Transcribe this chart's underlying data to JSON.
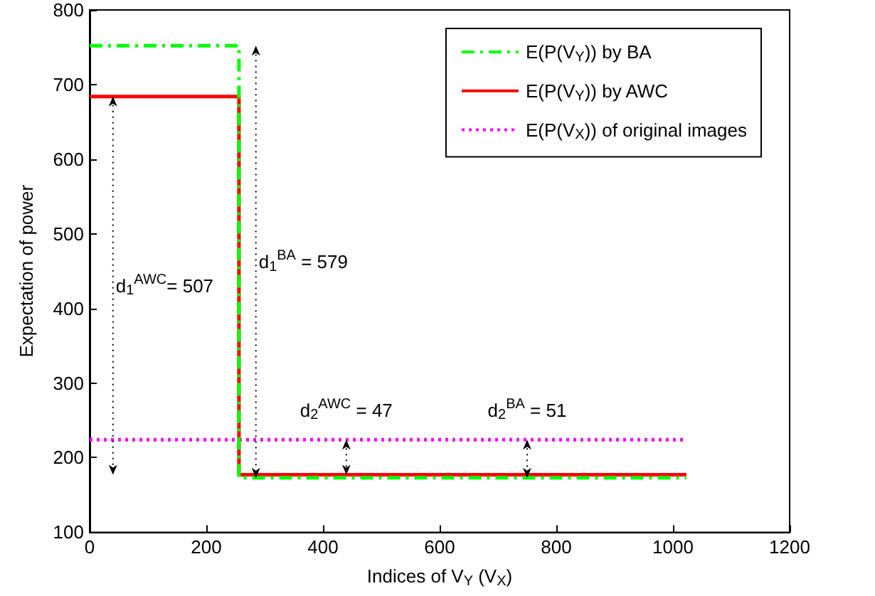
{
  "chart_data": {
    "type": "step",
    "xlabel": "Indices of V$_{Y}$ (V$_{X}$)",
    "ylabel": "Expectation of power",
    "xlim": [
      0,
      1200
    ],
    "xticks": [
      0,
      200,
      400,
      600,
      800,
      1000,
      1200
    ],
    "ylim": [
      100,
      800
    ],
    "yticks": [
      100,
      200,
      300,
      400,
      500,
      600,
      700,
      800
    ],
    "series": [
      {
        "name": "E(P(V$_{Y}$)) by BA",
        "color": "#00ff00",
        "line_style": "dashed",
        "x": [
          0,
          256,
          1023
        ],
        "values": [
          752,
          173,
          173
        ]
      },
      {
        "name": "E(P(V$_{Y}$)) by AWC",
        "color": "#ff0000",
        "line_style": "solid",
        "x": [
          0,
          256,
          1023
        ],
        "values": [
          684,
          177,
          177
        ]
      },
      {
        "name": "E(P(V$_{X}$)) of original images",
        "type": "line",
        "color": "#ff00ff",
        "line_style": "dotted",
        "x": [
          0,
          1023
        ],
        "values": [
          224,
          224
        ]
      }
    ],
    "annotations": [
      "d$_{1}$$^{AWC}$= 507",
      "d$_{1}$$^{BA}$ = 579",
      {
        "text": "d$_{2}$$^{AWC}$ = 47",
        "x": 440,
        "y": 224
      },
      {
        "text": "d$_{2}$$^{BA}$ = 51",
        "x": 750,
        "y": 224
      }
    ],
    "grid": false,
    "legend": "top right",
    "marker": "none"
  }
}
